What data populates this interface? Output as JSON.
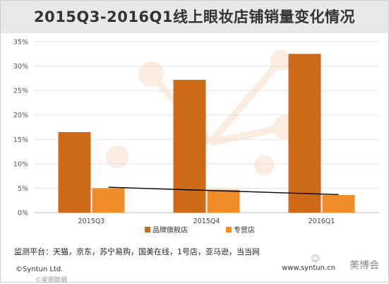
{
  "chart_data": {
    "type": "bar",
    "title": "2015Q3-2016Q1线上眼妆店铺销量变化情况",
    "categories": [
      "2015Q3",
      "2015Q4",
      "2016Q1"
    ],
    "series": [
      {
        "name": "品牌旗舰店",
        "color": "#cc6a1a",
        "values": [
          16.5,
          27.2,
          32.5
        ]
      },
      {
        "name": "专营店",
        "color": "#f08d2a",
        "values": [
          5.0,
          4.7,
          3.6
        ]
      }
    ],
    "trend_line": {
      "start": 5.2,
      "end": 3.7,
      "color": "#000000"
    },
    "y_ticks": [
      "0%",
      "5%",
      "10%",
      "15%",
      "20%",
      "25%",
      "30%",
      "35%"
    ],
    "ylim": [
      0,
      35
    ],
    "y_unit": "%",
    "grid": true,
    "legend": "bottom"
  },
  "footer": {
    "platforms": "监测平台：天猫，京东，苏宁易购，国美在线，1号店，亚马逊，当当网",
    "copyright": "©Syntun Ltd.",
    "copyright_cn": "©星图数据",
    "website": "www.syntun.cn",
    "watermark": "美博会",
    "watermark_icon": "☺"
  }
}
